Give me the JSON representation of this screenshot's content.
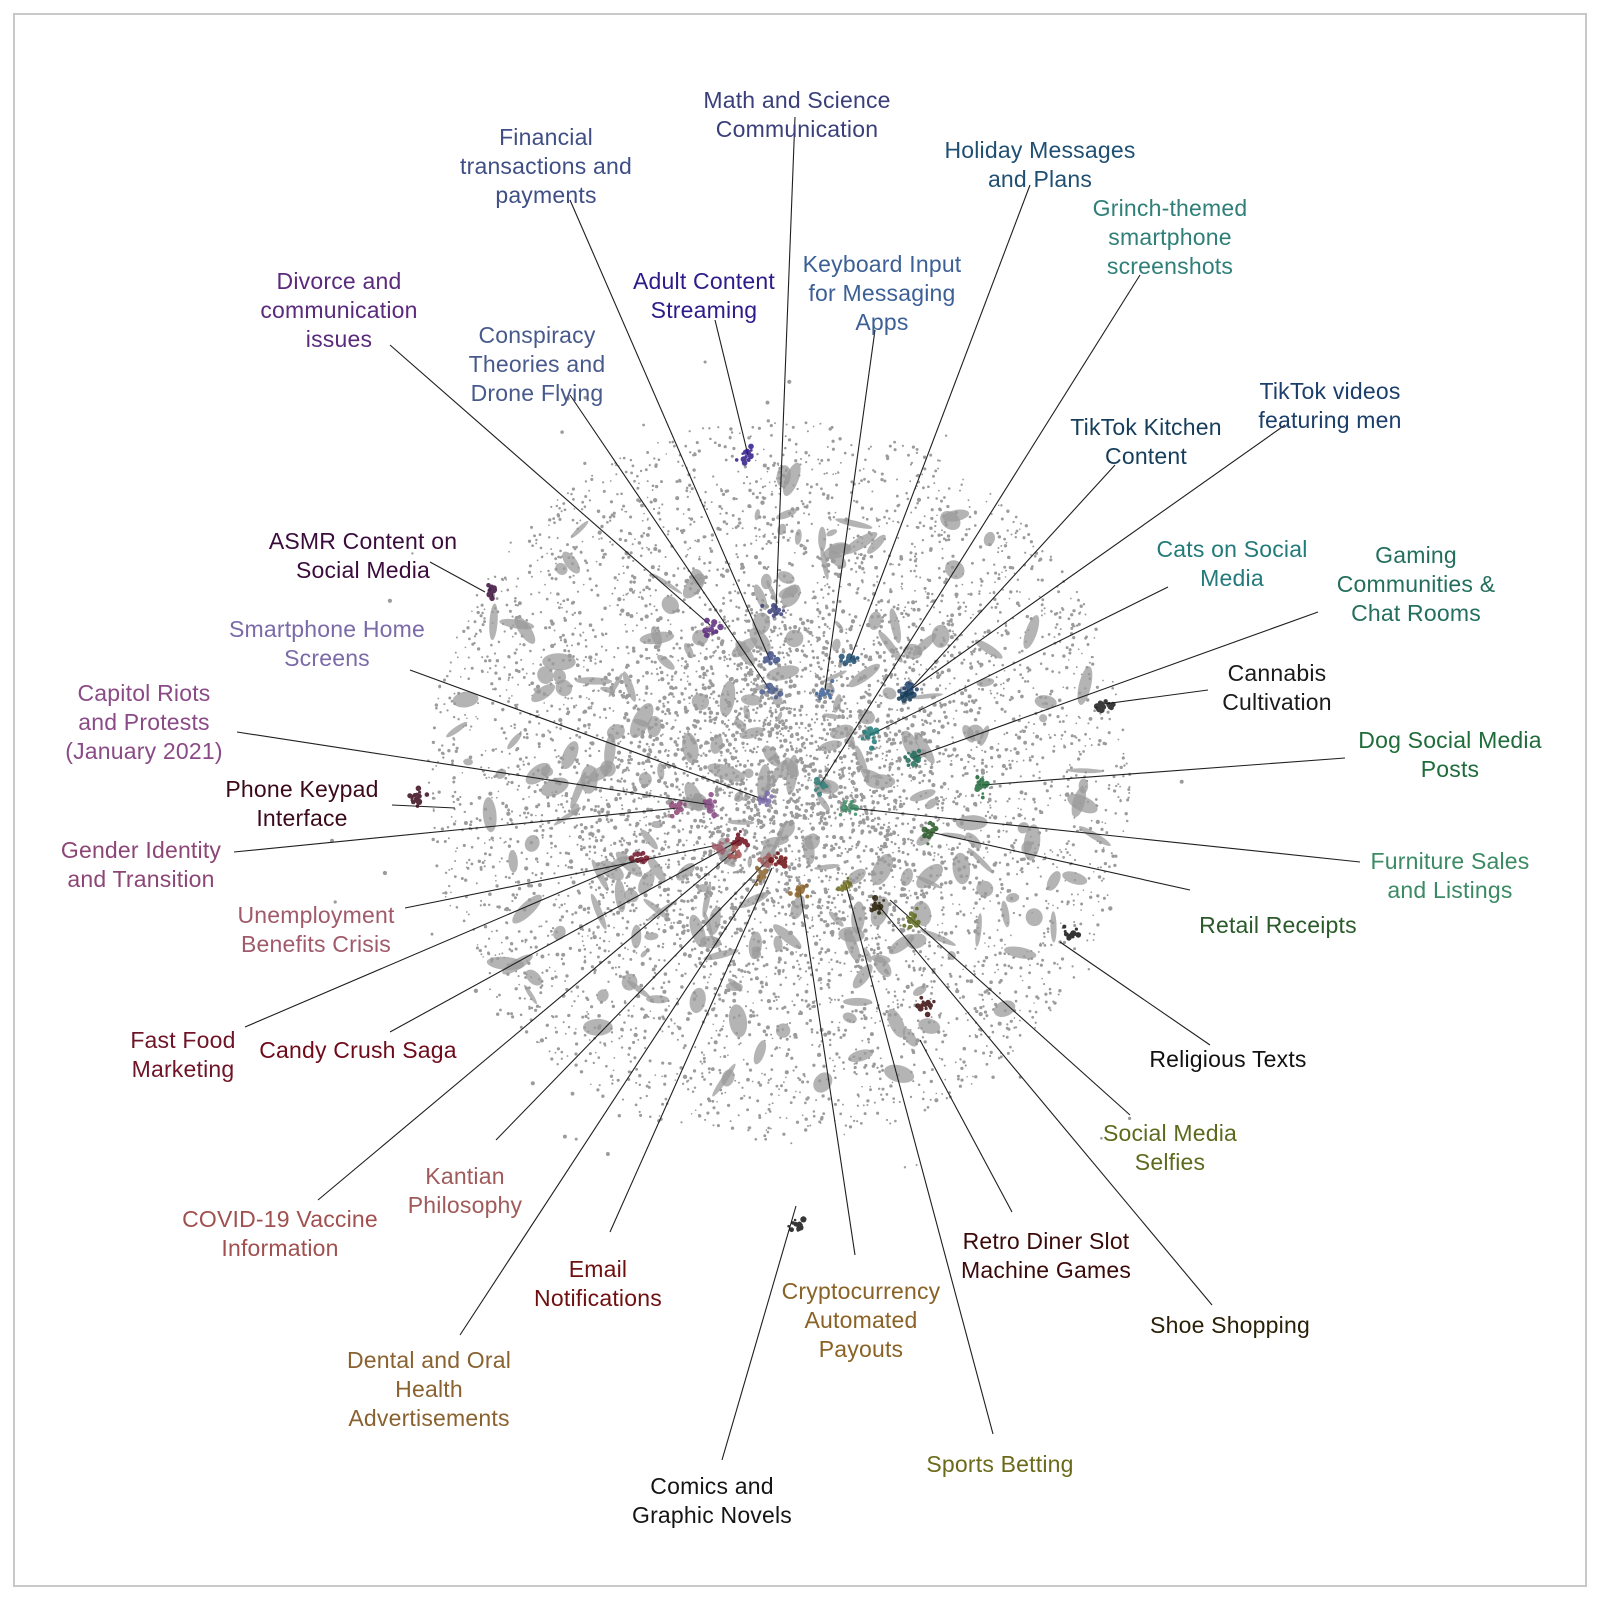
{
  "colors": {
    "cloud": "#9b9b9b",
    "leader_line": "#1f1f1f",
    "border": "#c9c9c9"
  },
  "clusters": [
    {
      "label": "Math and Science\nCommunication",
      "color": "#3a3f7a"
    },
    {
      "label": "Financial\ntransactions and\npayments",
      "color": "#3f4f86"
    },
    {
      "label": "Holiday Messages\nand Plans",
      "color": "#1f4f72"
    },
    {
      "label": "Grinch-themed\nsmartphone\nscreenshots",
      "color": "#2f7f78"
    },
    {
      "label": "Keyboard Input\nfor Messaging\nApps",
      "color": "#3c6096"
    },
    {
      "label": "Adult Content\nStreaming",
      "color": "#2e1a8a"
    },
    {
      "label": "Divorce and\ncommunication\nissues",
      "color": "#5a2a7c"
    },
    {
      "label": "Conspiracy\nTheories and\nDrone Flying",
      "color": "#485a8c"
    },
    {
      "label": "TikTok videos\nfeaturing men",
      "color": "#1b3e6a"
    },
    {
      "label": "TikTok Kitchen\nContent",
      "color": "#163d5a"
    },
    {
      "label": "ASMR Content on\nSocial Media",
      "color": "#3a0c3c"
    },
    {
      "label": "Cats on Social\nMedia",
      "color": "#237a7a"
    },
    {
      "label": "Gaming\nCommunities &\nChat Rooms",
      "color": "#236e5c"
    },
    {
      "label": "Smartphone Home\nScreens",
      "color": "#7a6aa8"
    },
    {
      "label": "Cannabis\nCultivation",
      "color": "#1a1a1a"
    },
    {
      "label": "Capitol Riots\nand Protests\n(January 2021)",
      "color": "#8a4a86"
    },
    {
      "label": "Dog Social Media\nPosts",
      "color": "#1f6b3a"
    },
    {
      "label": "Phone Keypad\nInterface",
      "color": "#3a0a1c"
    },
    {
      "label": "Gender Identity\nand Transition",
      "color": "#8c4676"
    },
    {
      "label": "Furniture Sales\nand Listings",
      "color": "#3b8a64"
    },
    {
      "label": "Unemployment\nBenefits Crisis",
      "color": "#a05a6a"
    },
    {
      "label": "Retail Receipts",
      "color": "#2a5a2a"
    },
    {
      "label": "Fast Food\nMarketing",
      "color": "#6e1426"
    },
    {
      "label": "Candy Crush Saga",
      "color": "#6e0a1a"
    },
    {
      "label": "Religious Texts",
      "color": "#111111"
    },
    {
      "label": "Kantian\nPhilosophy",
      "color": "#a05a5a"
    },
    {
      "label": "Social Media\nSelfies",
      "color": "#5c6a1e"
    },
    {
      "label": "COVID-19 Vaccine\nInformation",
      "color": "#a0504e"
    },
    {
      "label": "Email\nNotifications",
      "color": "#6e1010"
    },
    {
      "label": "Retro Diner Slot\nMachine Games",
      "color": "#3a0a0a"
    },
    {
      "label": "Cryptocurrency\nAutomated\nPayouts",
      "color": "#8a6226"
    },
    {
      "label": "Shoe Shopping",
      "color": "#2a2008"
    },
    {
      "label": "Dental and Oral\nHealth\nAdvertisements",
      "color": "#8a6230"
    },
    {
      "label": "Sports Betting",
      "color": "#6a6a1a"
    },
    {
      "label": "Comics and\nGraphic Novels",
      "color": "#141414"
    }
  ]
}
